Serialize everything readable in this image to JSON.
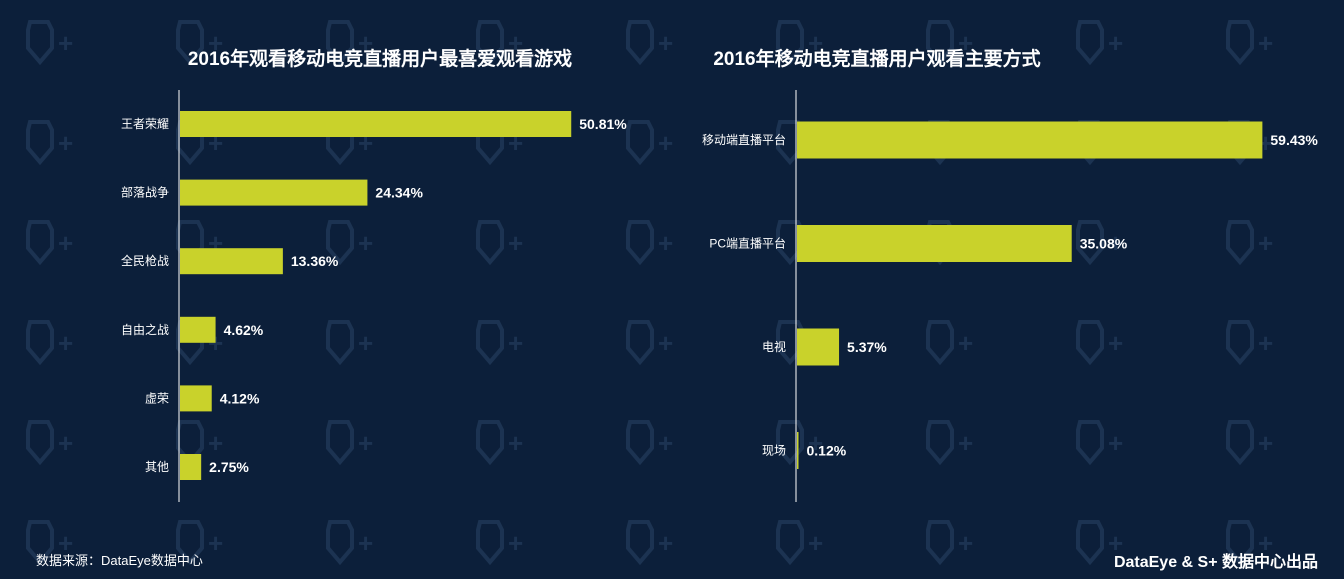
{
  "theme": {
    "background": "#0c1f3a",
    "bar_color": "#c9d22b",
    "text_color": "#ffffff",
    "axis_color": "#ffffff"
  },
  "watermark": {
    "text": "S+"
  },
  "chart_data": [
    {
      "type": "bar",
      "orientation": "horizontal",
      "title": "2016年观看移动电竞直播用户最喜爱观看游戏",
      "categories": [
        "王者荣耀",
        "部落战争",
        "全民枪战",
        "自由之战",
        "虚荣",
        "其他"
      ],
      "values": [
        50.81,
        24.34,
        13.36,
        4.62,
        4.12,
        2.75
      ],
      "value_labels": [
        "50.81%",
        "24.34%",
        "13.36%",
        "4.62%",
        "4.12%",
        "2.75%"
      ],
      "unit": "%",
      "xlim": [
        0,
        60
      ],
      "grid": false
    },
    {
      "type": "bar",
      "orientation": "horizontal",
      "title": "2016年移动电竞直播用户观看主要方式",
      "categories": [
        "移动端直播平台",
        "PC端直播平台",
        "电视",
        "现场"
      ],
      "values": [
        59.43,
        35.08,
        5.37,
        0.12
      ],
      "value_labels": [
        "59.43%",
        "35.08%",
        "5.37%",
        "0.12%"
      ],
      "unit": "%",
      "xlim": [
        0,
        65
      ],
      "grid": false
    }
  ],
  "footer": {
    "source": "数据来源：DataEye数据中心",
    "brand": "DataEye & S+ 数据中心出品"
  }
}
